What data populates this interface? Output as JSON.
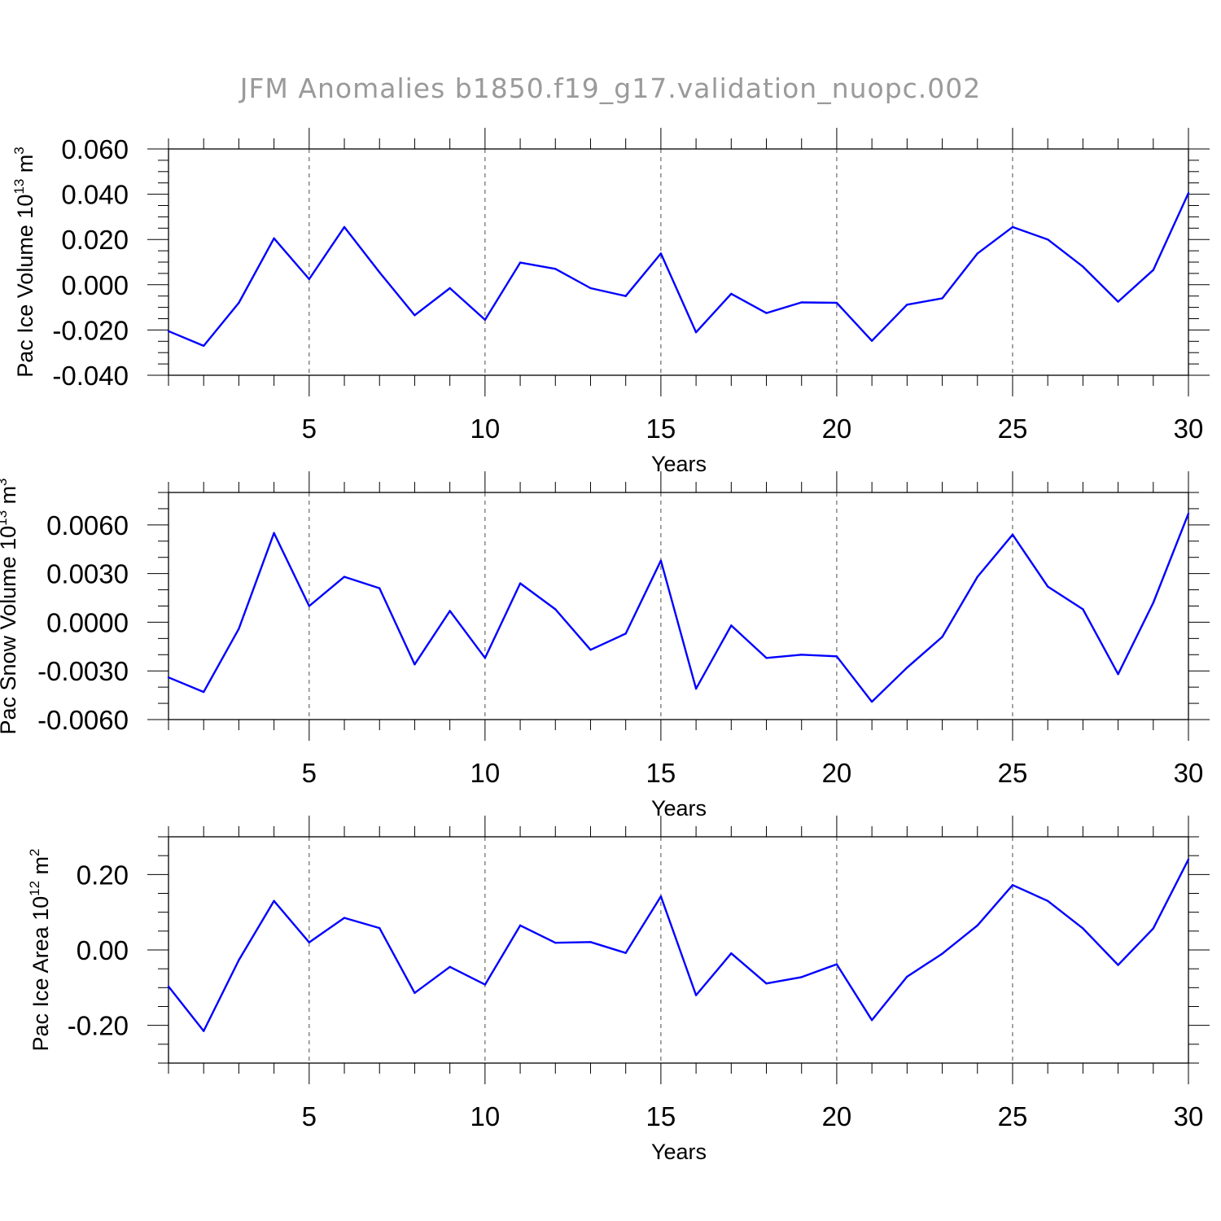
{
  "title": "JFM Anomalies b1850.f19_g17.validation_nuopc.002",
  "chart_data": [
    {
      "type": "line",
      "ylabel": {
        "text": "Pac Ice Volume 10",
        "exp1": "13",
        "unit": " m",
        "exp2": "3"
      },
      "xlabel": "Years",
      "xlim": [
        1,
        30
      ],
      "ylim": [
        -0.04,
        0.06
      ],
      "xticks": [
        5,
        10,
        15,
        20,
        25,
        30
      ],
      "xtick_labels": [
        "5",
        "10",
        "15",
        "20",
        "25",
        "30"
      ],
      "yticks": [
        -0.04,
        -0.02,
        0.0,
        0.02,
        0.04,
        0.06
      ],
      "ytick_labels": [
        "-0.040",
        "-0.020",
        "0.000",
        "0.020",
        "0.040",
        "0.060"
      ],
      "y_minor_step": 0.005,
      "grid": "dashed vertical at major x ticks",
      "series": [
        {
          "name": "Pac Ice Volume",
          "color": "#0000ff",
          "x": [
            1,
            2,
            3,
            4,
            5,
            6,
            7,
            8,
            9,
            10,
            11,
            12,
            13,
            14,
            15,
            16,
            17,
            18,
            19,
            20,
            21,
            22,
            23,
            24,
            25,
            26,
            27,
            28,
            29,
            30
          ],
          "values": [
            -0.0205,
            -0.027,
            -0.008,
            0.0205,
            0.0025,
            0.0255,
            0.0055,
            -0.0135,
            -0.0015,
            -0.0155,
            0.0098,
            0.007,
            -0.0015,
            -0.005,
            0.0138,
            -0.021,
            -0.004,
            -0.0125,
            -0.0078,
            -0.008,
            -0.0248,
            -0.0088,
            -0.006,
            0.0138,
            0.0255,
            0.02,
            0.008,
            -0.0075,
            0.0065,
            0.0405
          ]
        }
      ]
    },
    {
      "type": "line",
      "ylabel": {
        "text": "Pac Snow Volume 10",
        "exp1": "13",
        "unit": " m",
        "exp2": "3"
      },
      "xlabel": "Years",
      "xlim": [
        1,
        30
      ],
      "ylim": [
        -0.006,
        0.008
      ],
      "xticks": [
        5,
        10,
        15,
        20,
        25,
        30
      ],
      "xtick_labels": [
        "5",
        "10",
        "15",
        "20",
        "25",
        "30"
      ],
      "yticks": [
        -0.006,
        -0.003,
        0.0,
        0.003,
        0.006
      ],
      "ytick_labels": [
        "-0.0060",
        "-0.0030",
        "0.0000",
        "0.0030",
        "0.0060"
      ],
      "y_minor_step": 0.001,
      "grid": "dashed vertical at major x ticks",
      "series": [
        {
          "name": "Pac Snow Volume",
          "color": "#0000ff",
          "x": [
            1,
            2,
            3,
            4,
            5,
            6,
            7,
            8,
            9,
            10,
            11,
            12,
            13,
            14,
            15,
            16,
            17,
            18,
            19,
            20,
            21,
            22,
            23,
            24,
            25,
            26,
            27,
            28,
            29,
            30
          ],
          "values": [
            -0.0034,
            -0.0043,
            -0.0004,
            0.0055,
            0.001,
            0.0028,
            0.0021,
            -0.0026,
            0.0007,
            -0.0022,
            0.0024,
            0.0008,
            -0.0017,
            -0.0007,
            0.0038,
            -0.0041,
            -0.0002,
            -0.0022,
            -0.002,
            -0.0021,
            -0.0049,
            -0.0028,
            -0.0009,
            0.0028,
            0.0054,
            0.0022,
            0.0008,
            -0.0032,
            0.0012,
            0.0067
          ]
        }
      ]
    },
    {
      "type": "line",
      "ylabel": {
        "text": "Pac Ice Area 10",
        "exp1": "12",
        "unit": " m",
        "exp2": "2"
      },
      "xlabel": "Years",
      "xlim": [
        1,
        30
      ],
      "ylim": [
        -0.3,
        0.3
      ],
      "xticks": [
        5,
        10,
        15,
        20,
        25,
        30
      ],
      "xtick_labels": [
        "5",
        "10",
        "15",
        "20",
        "25",
        "30"
      ],
      "yticks": [
        -0.2,
        0.0,
        0.2
      ],
      "ytick_labels": [
        "-0.20",
        "0.00",
        "0.20"
      ],
      "y_minor_step": 0.05,
      "grid": "dashed vertical at major x ticks",
      "series": [
        {
          "name": "Pac Ice Area",
          "color": "#0000ff",
          "x": [
            1,
            2,
            3,
            4,
            5,
            6,
            7,
            8,
            9,
            10,
            11,
            12,
            13,
            14,
            15,
            16,
            17,
            18,
            19,
            20,
            21,
            22,
            23,
            24,
            25,
            26,
            27,
            28,
            29,
            30
          ],
          "values": [
            -0.097,
            -0.215,
            -0.027,
            0.13,
            0.02,
            0.085,
            0.058,
            -0.114,
            -0.045,
            -0.092,
            0.065,
            0.019,
            0.021,
            -0.008,
            0.142,
            -0.12,
            -0.009,
            -0.089,
            -0.072,
            -0.038,
            -0.186,
            -0.071,
            -0.01,
            0.065,
            0.172,
            0.13,
            0.057,
            -0.04,
            0.057,
            0.24
          ]
        }
      ]
    }
  ]
}
